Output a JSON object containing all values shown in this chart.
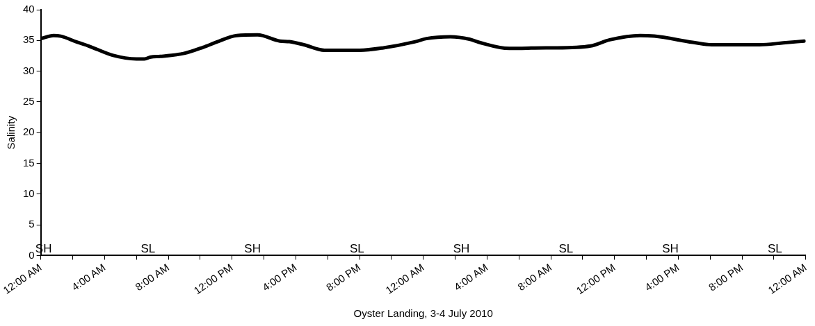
{
  "chart_data": {
    "type": "line",
    "xlabel": "Oyster Landing, 3-4 July 2010",
    "ylabel": "Salinity",
    "xlim": [
      "2010-07-03T00:00",
      "2010-07-05T00:00"
    ],
    "ylim": [
      0,
      40
    ],
    "xticks": [
      {
        "value": "2010-07-03T00:00",
        "label": "12:00 AM"
      },
      {
        "value": "2010-07-03T02:00",
        "label": null
      },
      {
        "value": "2010-07-03T04:00",
        "label": "4:00 AM"
      },
      {
        "value": "2010-07-03T06:00",
        "label": null
      },
      {
        "value": "2010-07-03T08:00",
        "label": "8:00 AM"
      },
      {
        "value": "2010-07-03T10:00",
        "label": null
      },
      {
        "value": "2010-07-03T12:00",
        "label": "12:00 PM"
      },
      {
        "value": "2010-07-03T14:00",
        "label": null
      },
      {
        "value": "2010-07-03T16:00",
        "label": "4:00 PM"
      },
      {
        "value": "2010-07-03T18:00",
        "label": null
      },
      {
        "value": "2010-07-03T20:00",
        "label": "8:00 PM"
      },
      {
        "value": "2010-07-03T22:00",
        "label": null
      },
      {
        "value": "2010-07-04T00:00",
        "label": "12:00 AM"
      },
      {
        "value": "2010-07-04T02:00",
        "label": null
      },
      {
        "value": "2010-07-04T04:00",
        "label": "4:00 AM"
      },
      {
        "value": "2010-07-04T06:00",
        "label": null
      },
      {
        "value": "2010-07-04T08:00",
        "label": "8:00 AM"
      },
      {
        "value": "2010-07-04T10:00",
        "label": null
      },
      {
        "value": "2010-07-04T12:00",
        "label": "12:00 PM"
      },
      {
        "value": "2010-07-04T14:00",
        "label": null
      },
      {
        "value": "2010-07-04T16:00",
        "label": "4:00 PM"
      },
      {
        "value": "2010-07-04T18:00",
        "label": null
      },
      {
        "value": "2010-07-04T20:00",
        "label": "8:00 PM"
      },
      {
        "value": "2010-07-04T22:00",
        "label": null
      },
      {
        "value": "2010-07-05T00:00",
        "label": "12:00 AM"
      }
    ],
    "yticks": [
      0,
      5,
      10,
      15,
      20,
      25,
      30,
      35,
      40
    ],
    "series": [
      {
        "color": "#000000",
        "x": [
          "2010-07-03T00:00",
          "2010-07-03T00:48",
          "2010-07-03T01:15",
          "2010-07-03T02:18",
          "2010-07-03T03:00",
          "2010-07-03T04:30",
          "2010-07-03T06:00",
          "2010-07-03T06:30",
          "2010-07-03T06:54",
          "2010-07-03T07:30",
          "2010-07-03T09:00",
          "2010-07-03T10:12",
          "2010-07-03T11:00",
          "2010-07-03T12:18",
          "2010-07-03T13:36",
          "2010-07-03T15:00",
          "2010-07-03T15:36",
          "2010-07-03T16:30",
          "2010-07-03T17:48",
          "2010-07-03T20:00",
          "2010-07-03T21:30",
          "2010-07-03T23:30",
          "2010-07-04T00:12",
          "2010-07-04T01:42",
          "2010-07-04T02:54",
          "2010-07-04T03:30",
          "2010-07-04T05:24",
          "2010-07-04T07:42",
          "2010-07-04T08:24",
          "2010-07-04T10:30",
          "2010-07-04T11:42",
          "2010-07-04T13:36",
          "2010-07-04T14:30",
          "2010-07-04T16:54",
          "2010-07-04T18:06",
          "2010-07-04T21:06",
          "2010-07-04T22:36",
          "2010-07-04T23:54"
        ],
        "values": [
          35.3,
          35.8,
          35.7,
          34.7,
          34.1,
          32.6,
          32,
          32,
          32.3,
          32.4,
          32.9,
          33.9,
          34.7,
          35.8,
          35.9,
          34.9,
          34.8,
          34.3,
          33.4,
          33.4,
          33.8,
          34.8,
          35.3,
          35.6,
          35.2,
          34.7,
          33.7,
          33.8,
          33.8,
          34.1,
          35.1,
          35.8,
          35.7,
          34.7,
          34.3,
          34.3,
          34.6,
          34.9
        ]
      }
    ],
    "annotations": [
      "SH",
      "SL",
      "SH",
      "SL",
      "SH",
      "SL",
      "SH",
      "SL"
    ]
  }
}
